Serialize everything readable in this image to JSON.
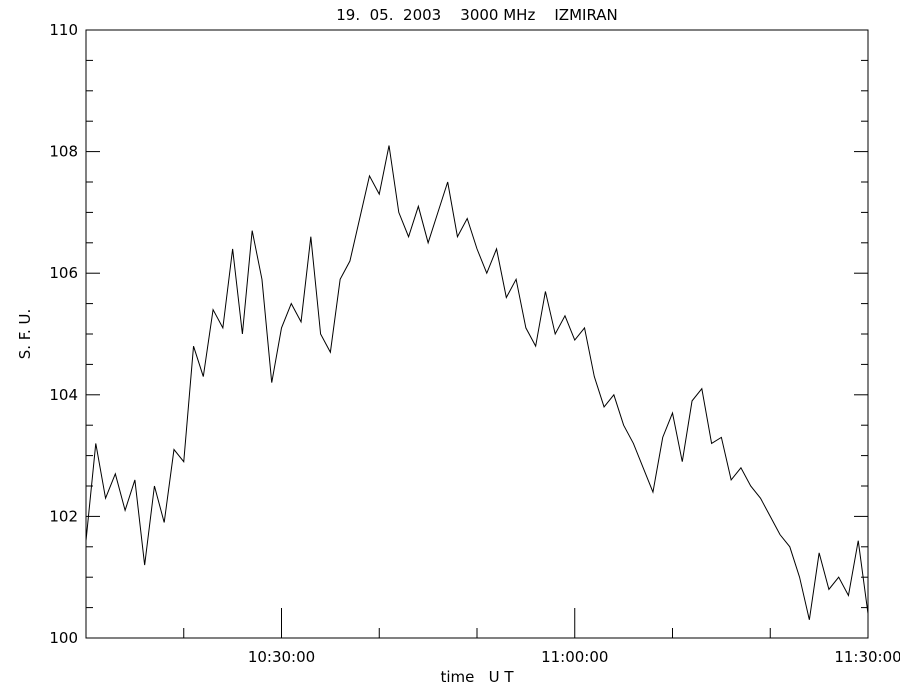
{
  "chart_data": {
    "type": "line",
    "title": "19.  05.  2003    3000 MHz    IZMIRAN",
    "x_label": "time   U T",
    "y_label": "S. F. U.",
    "xlim": [
      "10:10:00",
      "11:30:00"
    ],
    "xticks": [
      "10:30:00",
      "11:00:00",
      "11:30:00"
    ],
    "xminorticks": [
      "10:20:00",
      "10:40:00",
      "10:50:00",
      "11:10:00",
      "11:20:00"
    ],
    "ylim": [
      100,
      110
    ],
    "yticks": [
      100,
      102,
      104,
      106,
      108,
      110
    ],
    "yminorticks": [
      100.5,
      101,
      101.5,
      102.5,
      103,
      103.5,
      104.5,
      105,
      105.5,
      106.5,
      107,
      107.5,
      108.5,
      109,
      109.5
    ],
    "x": [
      "10:10:00",
      "10:11:00",
      "10:12:00",
      "10:13:00",
      "10:14:00",
      "10:15:00",
      "10:16:00",
      "10:17:00",
      "10:18:00",
      "10:19:00",
      "10:20:00",
      "10:21:00",
      "10:22:00",
      "10:23:00",
      "10:24:00",
      "10:25:00",
      "10:26:00",
      "10:27:00",
      "10:28:00",
      "10:29:00",
      "10:30:00",
      "10:31:00",
      "10:32:00",
      "10:33:00",
      "10:34:00",
      "10:35:00",
      "10:36:00",
      "10:37:00",
      "10:38:00",
      "10:39:00",
      "10:40:00",
      "10:41:00",
      "10:42:00",
      "10:43:00",
      "10:44:00",
      "10:45:00",
      "10:46:00",
      "10:47:00",
      "10:48:00",
      "10:49:00",
      "10:50:00",
      "10:51:00",
      "10:52:00",
      "10:53:00",
      "10:54:00",
      "10:55:00",
      "10:56:00",
      "10:57:00",
      "10:58:00",
      "10:59:00",
      "11:00:00",
      "11:01:00",
      "11:02:00",
      "11:03:00",
      "11:04:00",
      "11:05:00",
      "11:06:00",
      "11:07:00",
      "11:08:00",
      "11:09:00",
      "11:10:00",
      "11:11:00",
      "11:12:00",
      "11:13:00",
      "11:14:00",
      "11:15:00",
      "11:16:00",
      "11:17:00",
      "11:18:00",
      "11:19:00",
      "11:20:00",
      "11:21:00",
      "11:22:00",
      "11:23:00",
      "11:24:00",
      "11:25:00",
      "11:26:00",
      "11:27:00",
      "11:28:00",
      "11:29:00",
      "11:30:00"
    ],
    "series": [
      {
        "color": "#000000",
        "values": [
          101.6,
          103.2,
          102.3,
          102.7,
          102.1,
          102.6,
          101.2,
          102.5,
          101.9,
          103.1,
          102.9,
          104.8,
          104.3,
          105.4,
          105.1,
          106.4,
          105.0,
          106.7,
          105.9,
          104.2,
          105.1,
          105.5,
          105.2,
          106.6,
          105.0,
          104.7,
          105.9,
          106.2,
          106.9,
          107.6,
          107.3,
          108.1,
          107.0,
          106.6,
          107.1,
          106.5,
          107.0,
          107.5,
          106.6,
          106.9,
          106.4,
          106.0,
          106.4,
          105.6,
          105.9,
          105.1,
          104.8,
          105.7,
          105.0,
          105.3,
          104.9,
          105.1,
          104.3,
          103.8,
          104.0,
          103.5,
          103.2,
          102.8,
          102.4,
          103.3,
          103.7,
          102.9,
          103.9,
          104.1,
          103.2,
          103.3,
          102.6,
          102.8,
          102.5,
          102.3,
          102.0,
          101.7,
          101.5,
          101.0,
          100.3,
          101.4,
          100.8,
          101.0,
          100.7,
          101.6,
          100.4
        ]
      }
    ]
  }
}
